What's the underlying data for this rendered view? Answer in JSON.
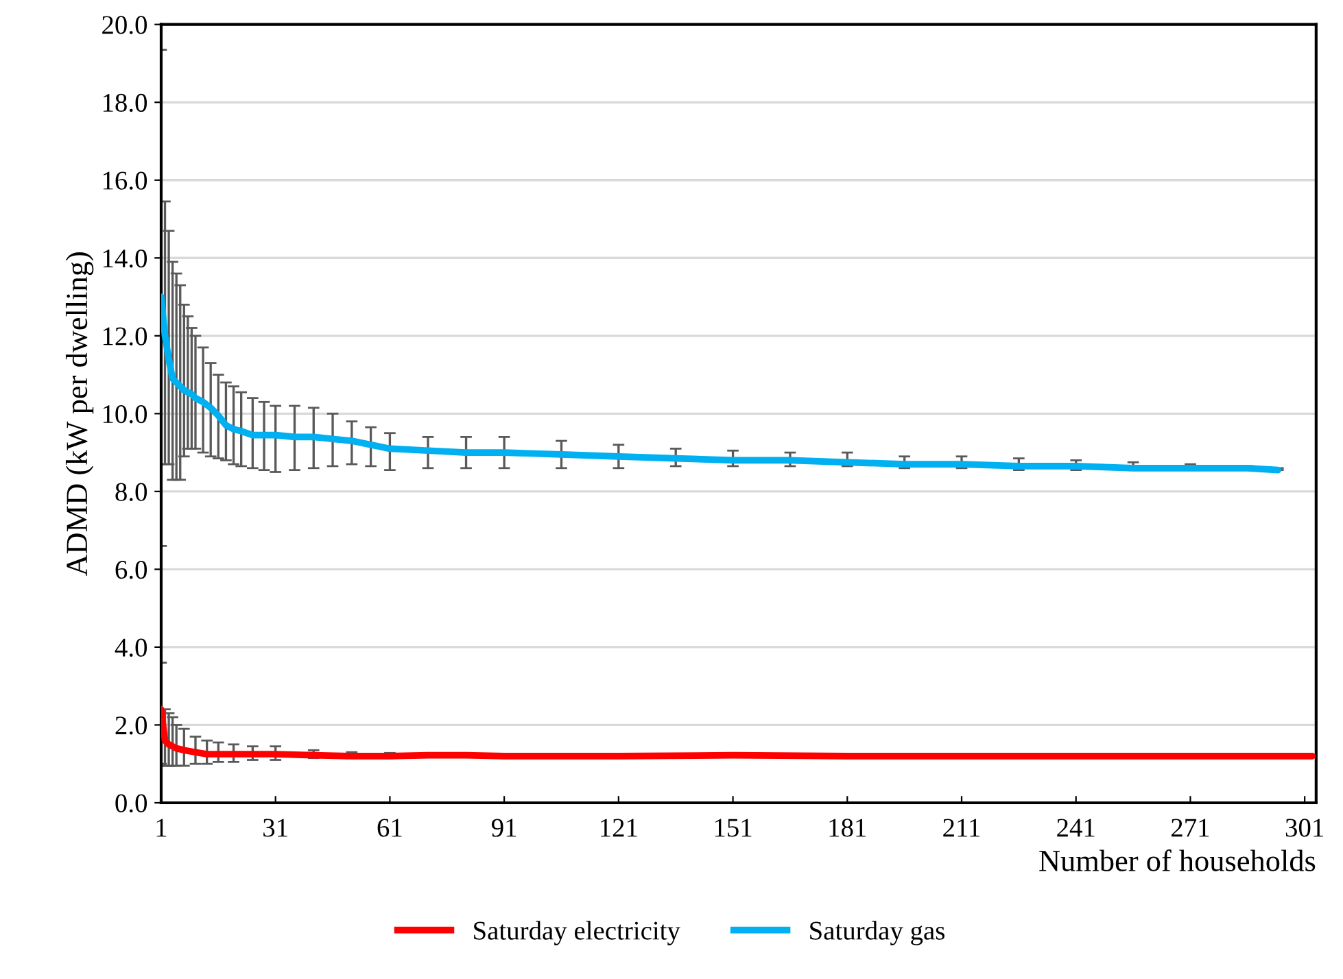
{
  "chart_data": {
    "type": "line",
    "xlabel": "Number of households",
    "ylabel": "ADMD (kW per dwelling)",
    "xlim": [
      1,
      304
    ],
    "xticks": [
      1,
      31,
      61,
      91,
      121,
      151,
      181,
      211,
      241,
      271,
      301
    ],
    "ylim": [
      0,
      20
    ],
    "yticks": [
      {
        "value": 0,
        "label": "0.0"
      },
      {
        "value": 2,
        "label": "2.0"
      },
      {
        "value": 4,
        "label": "4.0"
      },
      {
        "value": 6,
        "label": "6.0"
      },
      {
        "value": 8,
        "label": "8.0"
      },
      {
        "value": 10,
        "label": "10.0"
      },
      {
        "value": 12,
        "label": "12.0"
      },
      {
        "value": 14,
        "label": "14.0"
      },
      {
        "value": 16,
        "label": "16.0"
      },
      {
        "value": 18,
        "label": "18.0"
      },
      {
        "value": 20,
        "label": "20.0"
      }
    ],
    "grid": "y",
    "legend": "bottom",
    "marker": "none",
    "line_style": "solid",
    "series": [
      {
        "name": "Saturday electricity",
        "color": "#ff0000",
        "x": [
          1,
          2,
          3,
          4,
          5,
          7,
          10,
          13,
          16,
          20,
          25,
          31,
          41,
          51,
          61,
          71,
          81,
          91,
          106,
          121,
          151,
          181,
          211,
          241,
          271,
          303
        ],
        "values": [
          2.4,
          1.6,
          1.5,
          1.45,
          1.4,
          1.35,
          1.3,
          1.25,
          1.25,
          1.25,
          1.25,
          1.25,
          1.22,
          1.2,
          1.2,
          1.22,
          1.22,
          1.2,
          1.2,
          1.2,
          1.22,
          1.2,
          1.2,
          1.2,
          1.2,
          1.2
        ],
        "errors": [
          [
            1.0,
            3.6
          ],
          [
            0.95,
            2.4
          ],
          [
            0.95,
            2.3
          ],
          [
            0.95,
            2.2
          ],
          [
            0.95,
            2.0
          ],
          [
            0.95,
            1.9
          ],
          [
            1.0,
            1.7
          ],
          [
            1.0,
            1.6
          ],
          [
            1.05,
            1.55
          ],
          [
            1.05,
            1.5
          ],
          [
            1.1,
            1.45
          ],
          [
            1.1,
            1.45
          ],
          [
            1.15,
            1.35
          ],
          [
            1.15,
            1.3
          ],
          [
            1.15,
            1.28
          ],
          [
            1.17,
            1.27
          ],
          [
            1.17,
            1.27
          ],
          [
            1.17,
            1.25
          ],
          [
            1.17,
            1.23
          ],
          null,
          null,
          null,
          null,
          null,
          null,
          null
        ]
      },
      {
        "name": "Saturday gas",
        "color": "#00b0f0",
        "x": [
          1,
          2,
          3,
          4,
          5,
          6,
          7,
          8,
          9,
          10,
          12,
          14,
          16,
          18,
          20,
          22,
          25,
          28,
          31,
          36,
          41,
          46,
          51,
          56,
          61,
          71,
          81,
          91,
          106,
          121,
          136,
          151,
          166,
          181,
          196,
          211,
          226,
          241,
          256,
          271,
          286,
          294
        ],
        "values": [
          13.0,
          12.0,
          11.4,
          10.9,
          10.8,
          10.7,
          10.6,
          10.55,
          10.5,
          10.4,
          10.3,
          10.15,
          9.95,
          9.7,
          9.6,
          9.55,
          9.45,
          9.45,
          9.45,
          9.4,
          9.4,
          9.35,
          9.3,
          9.2,
          9.1,
          9.05,
          9.0,
          9.0,
          8.95,
          8.9,
          8.85,
          8.8,
          8.8,
          8.75,
          8.7,
          8.7,
          8.65,
          8.65,
          8.6,
          8.6,
          8.6,
          8.55
        ],
        "errors": [
          [
            6.6,
            19.35
          ],
          [
            8.7,
            15.45
          ],
          [
            8.7,
            14.7
          ],
          [
            8.3,
            13.9
          ],
          [
            8.3,
            13.6
          ],
          [
            8.3,
            13.3
          ],
          [
            8.9,
            12.8
          ],
          [
            9.1,
            12.5
          ],
          [
            9.1,
            12.2
          ],
          [
            9.1,
            12.0
          ],
          [
            9.0,
            11.7
          ],
          [
            8.9,
            11.3
          ],
          [
            8.85,
            11.0
          ],
          [
            8.8,
            10.8
          ],
          [
            8.7,
            10.7
          ],
          [
            8.65,
            10.55
          ],
          [
            8.6,
            10.4
          ],
          [
            8.55,
            10.3
          ],
          [
            8.5,
            10.2
          ],
          [
            8.55,
            10.2
          ],
          [
            8.6,
            10.15
          ],
          [
            8.65,
            10.0
          ],
          [
            8.7,
            9.8
          ],
          [
            8.65,
            9.65
          ],
          [
            8.55,
            9.5
          ],
          [
            8.6,
            9.4
          ],
          [
            8.6,
            9.4
          ],
          [
            8.6,
            9.4
          ],
          [
            8.6,
            9.3
          ],
          [
            8.6,
            9.2
          ],
          [
            8.65,
            9.1
          ],
          [
            8.65,
            9.05
          ],
          [
            8.65,
            9.0
          ],
          [
            8.65,
            9.0
          ],
          [
            8.6,
            8.9
          ],
          [
            8.6,
            8.9
          ],
          [
            8.55,
            8.85
          ],
          [
            8.55,
            8.8
          ],
          [
            8.55,
            8.75
          ],
          [
            8.55,
            8.7
          ],
          [
            8.55,
            8.65
          ],
          [
            8.55,
            8.6
          ]
        ]
      }
    ]
  }
}
